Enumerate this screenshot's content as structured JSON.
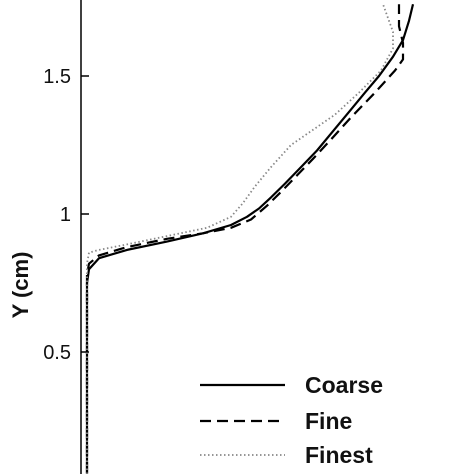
{
  "chart_data": {
    "type": "line",
    "title": "",
    "ylabel": "Y (cm)",
    "xlabel": "",
    "ylim": [
      0,
      1.75
    ],
    "yticks": [
      {
        "value": 0.5,
        "label": "0.5"
      },
      {
        "value": 1.0,
        "label": "1"
      },
      {
        "value": 1.5,
        "label": "1.5"
      }
    ],
    "grid": false,
    "legend_position": "bottom-right",
    "series": [
      {
        "name": "Coarse",
        "style": "solid",
        "color": "#000000",
        "points": [
          [
            0.0,
            0.0
          ],
          [
            0.0,
            0.5
          ],
          [
            0.0,
            0.75
          ],
          [
            0.01,
            0.8
          ],
          [
            0.06,
            0.84
          ],
          [
            0.2,
            0.87
          ],
          [
            0.4,
            0.9
          ],
          [
            0.58,
            0.93
          ],
          [
            0.72,
            0.96
          ],
          [
            0.8,
            0.99
          ],
          [
            0.86,
            1.02
          ],
          [
            0.92,
            1.06
          ],
          [
            0.99,
            1.11
          ],
          [
            1.07,
            1.17
          ],
          [
            1.15,
            1.23
          ],
          [
            1.23,
            1.3
          ],
          [
            1.31,
            1.37
          ],
          [
            1.39,
            1.44
          ],
          [
            1.46,
            1.5
          ],
          [
            1.53,
            1.57
          ],
          [
            1.58,
            1.63
          ],
          [
            1.61,
            1.7
          ],
          [
            1.63,
            1.76
          ]
        ]
      },
      {
        "name": "Fine",
        "style": "dashed",
        "color": "#000000",
        "points": [
          [
            0.0,
            0.0
          ],
          [
            0.0,
            0.5
          ],
          [
            0.0,
            0.78
          ],
          [
            0.01,
            0.82
          ],
          [
            0.06,
            0.85
          ],
          [
            0.2,
            0.88
          ],
          [
            0.4,
            0.91
          ],
          [
            0.58,
            0.93
          ],
          [
            0.72,
            0.95
          ],
          [
            0.82,
            0.98
          ],
          [
            0.9,
            1.03
          ],
          [
            0.97,
            1.08
          ],
          [
            1.05,
            1.14
          ],
          [
            1.13,
            1.2
          ],
          [
            1.22,
            1.27
          ],
          [
            1.32,
            1.35
          ],
          [
            1.44,
            1.44
          ],
          [
            1.54,
            1.52
          ],
          [
            1.58,
            1.56
          ],
          [
            1.58,
            1.62
          ],
          [
            1.56,
            1.68
          ],
          [
            1.56,
            1.76
          ]
        ]
      },
      {
        "name": "Finest",
        "style": "dotted",
        "color": "#888888",
        "points": [
          [
            0.0,
            0.0
          ],
          [
            0.0,
            0.5
          ],
          [
            0.0,
            0.82
          ],
          [
            0.01,
            0.86
          ],
          [
            0.06,
            0.87
          ],
          [
            0.2,
            0.89
          ],
          [
            0.4,
            0.92
          ],
          [
            0.6,
            0.95
          ],
          [
            0.72,
            0.99
          ],
          [
            0.78,
            1.04
          ],
          [
            0.84,
            1.1
          ],
          [
            0.92,
            1.17
          ],
          [
            1.02,
            1.25
          ],
          [
            1.12,
            1.3
          ],
          [
            1.24,
            1.36
          ],
          [
            1.36,
            1.44
          ],
          [
            1.47,
            1.52
          ],
          [
            1.53,
            1.6
          ],
          [
            1.53,
            1.66
          ],
          [
            1.5,
            1.72
          ],
          [
            1.48,
            1.76
          ]
        ]
      }
    ]
  }
}
